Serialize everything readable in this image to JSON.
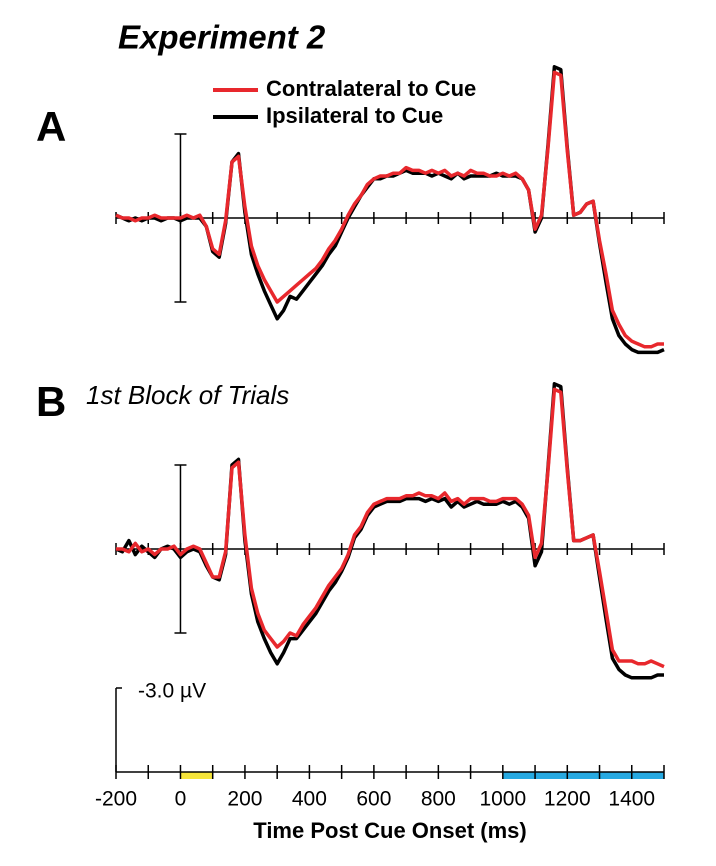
{
  "title": "Experiment 2",
  "calibration": {
    "value": -3.0,
    "label": "-3.0 µV"
  },
  "xaxis": {
    "label": "Time Post Cue Onset (ms)",
    "xlim": [
      -200,
      1500
    ],
    "xticks": [
      -200,
      0,
      200,
      400,
      600,
      800,
      1000,
      1200,
      1400
    ],
    "xticks_minor": [
      -100,
      100,
      300,
      500,
      700,
      900,
      1100,
      1300,
      1500
    ],
    "highlights": [
      {
        "start": 0,
        "end": 100,
        "color": "#f5e43a"
      },
      {
        "start": 1000,
        "end": 1500,
        "color": "#27a9e1"
      }
    ]
  },
  "chart_data": [
    {
      "type": "line",
      "label": "A",
      "xlim": [
        -200,
        1500
      ],
      "ylim": [
        5,
        -6
      ],
      "x": [
        -200,
        -180,
        -160,
        -140,
        -120,
        -100,
        -80,
        -60,
        -40,
        -20,
        0,
        20,
        40,
        60,
        80,
        100,
        120,
        140,
        160,
        180,
        200,
        220,
        240,
        260,
        280,
        300,
        320,
        340,
        360,
        380,
        400,
        420,
        440,
        460,
        480,
        500,
        520,
        540,
        560,
        580,
        600,
        620,
        640,
        660,
        680,
        700,
        720,
        740,
        760,
        780,
        800,
        820,
        840,
        860,
        880,
        900,
        920,
        940,
        960,
        980,
        1000,
        1020,
        1040,
        1060,
        1080,
        1100,
        1120,
        1140,
        1160,
        1180,
        1200,
        1220,
        1240,
        1260,
        1280,
        1300,
        1320,
        1340,
        1360,
        1380,
        1400,
        1420,
        1440,
        1460,
        1480,
        1500
      ],
      "series": [
        {
          "name": "Contralateral to Cue",
          "color": "#e8282d",
          "values": [
            -0.1,
            0,
            0,
            0.1,
            0,
            0,
            -0.1,
            0,
            0,
            0,
            0,
            -0.1,
            0,
            -0.1,
            0.3,
            1.1,
            1.3,
            0.1,
            -2.0,
            -2.2,
            -0.4,
            1.0,
            1.7,
            2.2,
            2.6,
            3.0,
            2.8,
            2.6,
            2.4,
            2.2,
            2.0,
            1.8,
            1.5,
            1.1,
            0.8,
            0.4,
            -0.1,
            -0.5,
            -0.8,
            -1.2,
            -1.4,
            -1.5,
            -1.5,
            -1.6,
            -1.6,
            -1.8,
            -1.7,
            -1.7,
            -1.6,
            -1.7,
            -1.6,
            -1.7,
            -1.5,
            -1.6,
            -1.5,
            -1.7,
            -1.6,
            -1.6,
            -1.5,
            -1.5,
            -1.6,
            -1.5,
            -1.6,
            -1.4,
            -1.0,
            0.4,
            -0.1,
            -2.5,
            -5.2,
            -5.1,
            -2.4,
            -0.1,
            -0.2,
            -0.5,
            -0.6,
            0.8,
            2.0,
            3.3,
            3.8,
            4.2,
            4.4,
            4.5,
            4.6,
            4.6,
            4.5,
            4.5
          ]
        },
        {
          "name": "Ipsilateral to Cue",
          "color": "#000000",
          "values": [
            -0.1,
            0,
            0.1,
            0,
            0.1,
            0,
            0,
            0.1,
            0,
            0,
            0.1,
            0,
            0,
            0,
            0.3,
            1.2,
            1.4,
            0.2,
            -2.0,
            -2.3,
            -0.2,
            1.3,
            2.0,
            2.6,
            3.1,
            3.6,
            3.3,
            2.8,
            2.9,
            2.6,
            2.3,
            2.0,
            1.7,
            1.3,
            1.0,
            0.5,
            0.0,
            -0.4,
            -0.8,
            -1.1,
            -1.4,
            -1.4,
            -1.5,
            -1.5,
            -1.6,
            -1.7,
            -1.6,
            -1.6,
            -1.6,
            -1.5,
            -1.6,
            -1.5,
            -1.4,
            -1.6,
            -1.4,
            -1.5,
            -1.5,
            -1.5,
            -1.5,
            -1.6,
            -1.5,
            -1.5,
            -1.5,
            -1.4,
            -1.0,
            0.5,
            0.0,
            -2.6,
            -5.4,
            -5.3,
            -2.5,
            -0.1,
            -0.2,
            -0.5,
            -0.6,
            0.9,
            2.3,
            3.6,
            4.2,
            4.5,
            4.7,
            4.8,
            4.8,
            4.8,
            4.8,
            4.7
          ]
        }
      ]
    },
    {
      "type": "line",
      "label": "B",
      "subtitle": "1st Block of Trials",
      "xlim": [
        -200,
        1500
      ],
      "ylim": [
        5,
        -6
      ],
      "x": [
        -200,
        -180,
        -160,
        -140,
        -120,
        -100,
        -80,
        -60,
        -40,
        -20,
        0,
        20,
        40,
        60,
        80,
        100,
        120,
        140,
        160,
        180,
        200,
        220,
        240,
        260,
        280,
        300,
        320,
        340,
        360,
        380,
        400,
        420,
        440,
        460,
        480,
        500,
        520,
        540,
        560,
        580,
        600,
        620,
        640,
        660,
        680,
        700,
        720,
        740,
        760,
        780,
        800,
        820,
        840,
        860,
        880,
        900,
        920,
        940,
        960,
        980,
        1000,
        1020,
        1040,
        1060,
        1080,
        1100,
        1120,
        1140,
        1160,
        1180,
        1200,
        1220,
        1240,
        1260,
        1280,
        1300,
        1320,
        1340,
        1360,
        1380,
        1400,
        1420,
        1440,
        1460,
        1480,
        1500
      ],
      "series": [
        {
          "name": "Contralateral to Cue",
          "color": "#e8282d",
          "values": [
            0,
            0,
            0.1,
            -0.2,
            0.1,
            0,
            0.2,
            0,
            0,
            -0.1,
            0.2,
            0,
            -0.1,
            0,
            0.5,
            1.0,
            1.0,
            0.1,
            -2.9,
            -3.1,
            -0.5,
            1.4,
            2.3,
            2.9,
            3.2,
            3.5,
            3.3,
            3.0,
            3.1,
            2.7,
            2.4,
            2.1,
            1.7,
            1.3,
            1.0,
            0.7,
            0.2,
            -0.5,
            -0.8,
            -1.3,
            -1.6,
            -1.7,
            -1.8,
            -1.8,
            -1.8,
            -1.9,
            -1.9,
            -2.0,
            -1.9,
            -1.9,
            -1.8,
            -2.0,
            -1.7,
            -1.8,
            -1.6,
            -1.8,
            -1.8,
            -1.8,
            -1.7,
            -1.7,
            -1.8,
            -1.8,
            -1.8,
            -1.6,
            -1.2,
            0.3,
            -0.2,
            -2.8,
            -5.7,
            -5.6,
            -2.8,
            -0.3,
            -0.3,
            -0.4,
            -0.5,
            0.8,
            2.2,
            3.6,
            4.0,
            4.0,
            4.0,
            4.1,
            4.1,
            4.0,
            4.1,
            4.2
          ]
        },
        {
          "name": "Ipsilateral to Cue",
          "color": "#000000",
          "values": [
            0,
            0.1,
            -0.3,
            0.2,
            -0.1,
            0.1,
            0.3,
            0,
            -0.1,
            0,
            0.3,
            0.1,
            0,
            0.1,
            0.6,
            1.0,
            1.1,
            0.2,
            -3.0,
            -3.2,
            -0.3,
            1.6,
            2.6,
            3.2,
            3.7,
            4.1,
            3.7,
            3.2,
            3.2,
            2.9,
            2.6,
            2.3,
            1.9,
            1.5,
            1.2,
            0.8,
            0.3,
            -0.4,
            -0.7,
            -1.2,
            -1.5,
            -1.6,
            -1.7,
            -1.7,
            -1.7,
            -1.8,
            -1.8,
            -1.8,
            -1.7,
            -1.8,
            -1.7,
            -1.8,
            -1.5,
            -1.7,
            -1.5,
            -1.6,
            -1.7,
            -1.6,
            -1.6,
            -1.6,
            -1.7,
            -1.6,
            -1.7,
            -1.5,
            -1.1,
            0.6,
            0.1,
            -2.9,
            -5.9,
            -5.8,
            -2.9,
            -0.3,
            -0.3,
            -0.4,
            -0.5,
            1.0,
            2.5,
            3.9,
            4.3,
            4.5,
            4.6,
            4.6,
            4.6,
            4.6,
            4.5,
            4.5
          ]
        }
      ]
    }
  ]
}
